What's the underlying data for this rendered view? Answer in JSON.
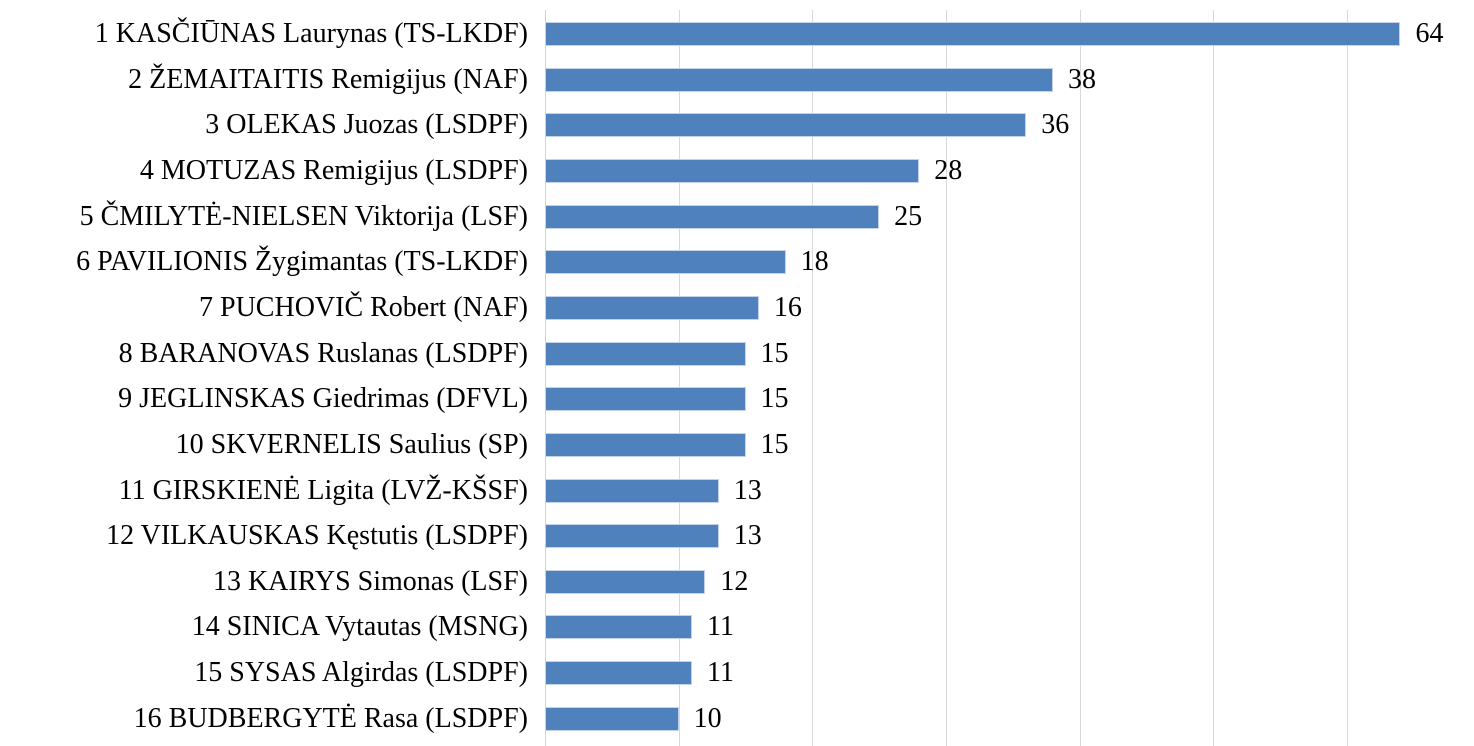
{
  "chart_data": {
    "type": "bar",
    "orientation": "horizontal",
    "title": "",
    "xlabel": "",
    "ylabel": "",
    "categories": [
      "1 KASČIŪNAS Laurynas (TS-LKDF)",
      "2 ŽEMAITAITIS Remigijus (NAF)",
      "3 OLEKAS Juozas (LSDPF)",
      "4 MOTUZAS Remigijus (LSDPF)",
      "5 ČMILYTĖ-NIELSEN Viktorija (LSF)",
      "6 PAVILIONIS Žygimantas (TS-LKDF)",
      "7 PUCHOVIČ Robert (NAF)",
      "8 BARANOVAS Ruslanas (LSDPF)",
      "9 JEGLINSKAS Giedrimas (DFVL)",
      "10 SKVERNELIS Saulius (SP)",
      "11 GIRSKIENĖ Ligita (LVŽ-KŠSF)",
      "12 VILKAUSKAS Kęstutis (LSDPF)",
      "13 KAIRYS Simonas (LSF)",
      "14 SINICA Vytautas (MSNG)",
      "15 SYSAS Algirdas (LSDPF)",
      "16 BUDBERGYTĖ Rasa (LSDPF)"
    ],
    "values": [
      64,
      38,
      36,
      28,
      25,
      18,
      16,
      15,
      15,
      15,
      13,
      13,
      12,
      11,
      11,
      10
    ],
    "data_labels_shown": true,
    "xlim": [
      0,
      69.5
    ],
    "gridlines": [
      0,
      10,
      20,
      30,
      40,
      50,
      60
    ],
    "grid_on": true,
    "legend_position": "none",
    "colors": {
      "bar_fill": "#4f81bd",
      "bar_edge": "#c4d3e8",
      "gridline": "#d9d9d9",
      "label_text": "#000000",
      "background": "#ffffff"
    }
  }
}
